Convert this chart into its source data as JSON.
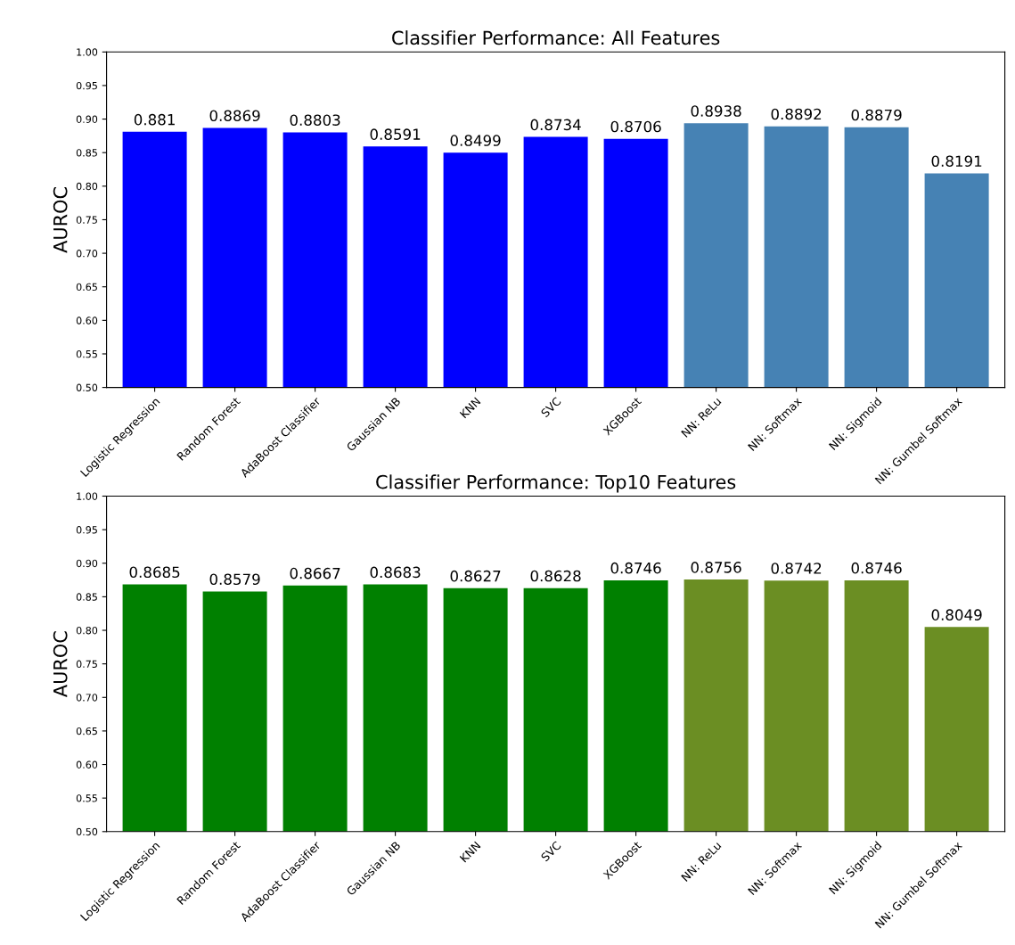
{
  "chart_data": [
    {
      "type": "bar",
      "title": "Classifier Performance: All Features",
      "ylabel": "AUROC",
      "categories": [
        "Logistic Regression",
        "Random Forest",
        "AdaBoost Classifier",
        "Gaussian NB",
        "KNN",
        "SVC",
        "XGBoost",
        "NN: ReLu",
        "NN: Softmax",
        "NN: Sigmoid",
        "NN: Gumbel Softmax"
      ],
      "values": [
        0.881,
        0.8869,
        0.8803,
        0.8591,
        0.8499,
        0.8734,
        0.8706,
        0.8938,
        0.8892,
        0.8879,
        0.8191
      ],
      "colors": [
        "#0000ff",
        "#0000ff",
        "#0000ff",
        "#0000ff",
        "#0000ff",
        "#0000ff",
        "#0000ff",
        "#4682b4",
        "#4682b4",
        "#4682b4",
        "#4682b4"
      ],
      "ylim": [
        0.5,
        1.0
      ],
      "yticks": [
        {
          "value": 0.5,
          "label": "0.50"
        },
        {
          "value": 0.55,
          "label": "0.55"
        },
        {
          "value": 0.6,
          "label": "0.60"
        },
        {
          "value": 0.65,
          "label": "0.65"
        },
        {
          "value": 0.7,
          "label": "0.70"
        },
        {
          "value": 0.75,
          "label": "0.75"
        },
        {
          "value": 0.8,
          "label": "0.80"
        },
        {
          "value": 0.85,
          "label": "0.85"
        },
        {
          "value": 0.9,
          "label": "0.90"
        },
        {
          "value": 0.95,
          "label": "0.95"
        },
        {
          "value": 1.0,
          "label": "1.00"
        }
      ],
      "data_labels": true,
      "grid": false,
      "legend": false
    },
    {
      "type": "bar",
      "title": "Classifier Performance: Top10 Features",
      "ylabel": "AUROC",
      "categories": [
        "Logistic Regression",
        "Random Forest",
        "AdaBoost Classifier",
        "Gaussian NB",
        "KNN",
        "SVC",
        "XGBoost",
        "NN: ReLu",
        "NN: Softmax",
        "NN: Sigmoid",
        "NN: Gumbel Softmax"
      ],
      "values": [
        0.8685,
        0.8579,
        0.8667,
        0.8683,
        0.8627,
        0.8628,
        0.8746,
        0.8756,
        0.8742,
        0.8746,
        0.8049
      ],
      "colors": [
        "#008000",
        "#008000",
        "#008000",
        "#008000",
        "#008000",
        "#008000",
        "#008000",
        "#6b8e23",
        "#6b8e23",
        "#6b8e23",
        "#6b8e23"
      ],
      "ylim": [
        0.5,
        1.0
      ],
      "yticks": [
        {
          "value": 0.5,
          "label": "0.50"
        },
        {
          "value": 0.55,
          "label": "0.55"
        },
        {
          "value": 0.6,
          "label": "0.60"
        },
        {
          "value": 0.65,
          "label": "0.65"
        },
        {
          "value": 0.7,
          "label": "0.70"
        },
        {
          "value": 0.75,
          "label": "0.75"
        },
        {
          "value": 0.8,
          "label": "0.80"
        },
        {
          "value": 0.85,
          "label": "0.85"
        },
        {
          "value": 0.9,
          "label": "0.90"
        },
        {
          "value": 0.95,
          "label": "0.95"
        },
        {
          "value": 1.0,
          "label": "1.00"
        }
      ],
      "data_labels": true,
      "grid": false,
      "legend": false
    }
  ]
}
